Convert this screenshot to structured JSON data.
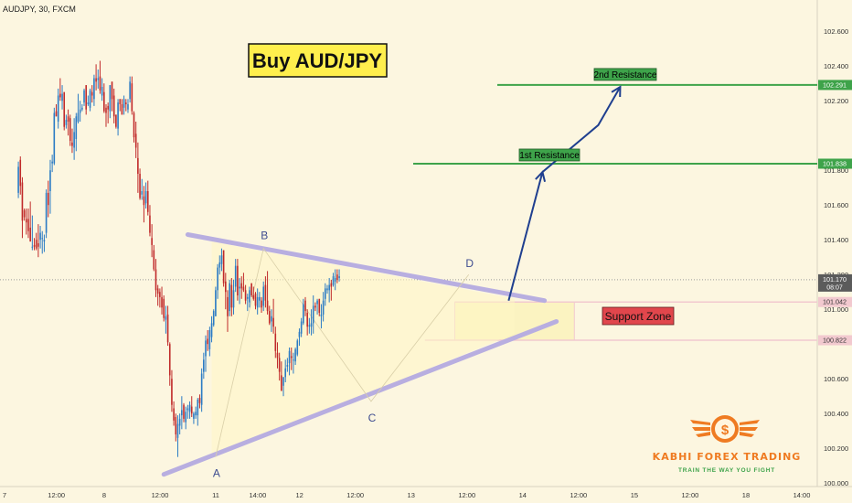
{
  "header": {
    "symbol_line": "AUDJPY, 30, FXCM"
  },
  "chart_data": {
    "type": "candlestick",
    "title": "Buy AUD/JPY",
    "yaxis": {
      "ticks": [
        "102.600",
        "102.400",
        "102.200",
        "101.800",
        "101.600",
        "101.400",
        "101.200",
        "101.000",
        "100.600",
        "100.400",
        "100.200",
        "100.000"
      ],
      "tick_values": [
        102.6,
        102.4,
        102.2,
        101.8,
        101.6,
        101.4,
        101.2,
        101.0,
        100.6,
        100.4,
        100.2,
        100.0
      ],
      "ylim": [
        99.98,
        102.78
      ]
    },
    "xaxis": {
      "ticks": [
        "7",
        "12:00",
        "8",
        "12:00",
        "11",
        "14:00",
        "12",
        "12:00",
        "13",
        "12:00",
        "14",
        "12:00",
        "15",
        "12:00",
        "18",
        "14:00"
      ],
      "tick_index": [
        0,
        26,
        50,
        78,
        106,
        127,
        148,
        176,
        204,
        232,
        260,
        288,
        316,
        344,
        372,
        400
      ],
      "n_slots": 408
    },
    "price_labels": [
      {
        "id": "r2",
        "text": "102.291",
        "value": 102.291,
        "color": "#3ea34a"
      },
      {
        "id": "r1",
        "text": "101.838",
        "value": 101.838,
        "color": "#3ea34a"
      },
      {
        "id": "last",
        "text": "101.170",
        "value": 101.17,
        "color": "#5b5b5b",
        "sub": "08:07"
      },
      {
        "id": "zt",
        "text": "101.042",
        "value": 101.042,
        "color": "#f2c9cf"
      },
      {
        "id": "zb",
        "text": "100.822",
        "value": 100.822,
        "color": "#f2c9cf"
      }
    ],
    "pivots": [
      {
        "label": "A",
        "x": 105,
        "y": 100.15
      },
      {
        "label": "B",
        "x": 129,
        "y": 101.35
      },
      {
        "label": "C",
        "x": 183,
        "y": 100.47
      },
      {
        "label": "D",
        "x": 232,
        "y": 101.2
      }
    ],
    "levels": [
      {
        "name": "2nd Resistance",
        "value": 102.291
      },
      {
        "name": "1st Resistance",
        "value": 101.838
      }
    ],
    "zone": {
      "name": "Support Zone",
      "top": 101.042,
      "bottom": 100.822
    },
    "trendlines": [
      {
        "from": [
          91,
          101.43
        ],
        "to": [
          270,
          101.05
        ]
      },
      {
        "from": [
          79,
          100.05
        ],
        "to": [
          276,
          100.93
        ]
      }
    ],
    "projection": [
      [
        252,
        101.05
      ],
      [
        269,
        101.79
      ],
      [
        297,
        102.06
      ],
      [
        308,
        102.28
      ]
    ],
    "candles": [
      [
        101.67,
        101.85,
        101.64,
        101.82
      ],
      [
        101.86,
        101.88,
        101.66,
        101.71
      ],
      [
        101.73,
        101.76,
        101.41,
        101.51
      ],
      [
        101.57,
        101.58,
        101.51,
        101.53
      ],
      [
        101.52,
        101.58,
        101.43,
        101.5
      ],
      [
        101.52,
        101.58,
        101.41,
        101.45
      ],
      [
        101.47,
        101.62,
        101.39,
        101.39
      ],
      [
        101.36,
        101.54,
        101.34,
        101.36
      ],
      [
        101.37,
        101.41,
        101.34,
        101.36
      ],
      [
        101.4,
        101.44,
        101.34,
        101.35
      ],
      [
        101.38,
        101.49,
        101.3,
        101.36
      ],
      [
        101.4,
        101.48,
        101.35,
        101.44
      ],
      [
        101.41,
        101.45,
        101.32,
        101.41
      ],
      [
        101.39,
        101.43,
        101.33,
        101.4
      ],
      [
        101.44,
        101.69,
        101.41,
        101.67
      ],
      [
        101.67,
        101.74,
        101.53,
        101.6
      ],
      [
        101.68,
        101.86,
        101.55,
        101.8
      ],
      [
        101.84,
        101.89,
        101.79,
        101.85
      ],
      [
        101.84,
        102.16,
        101.83,
        102.13
      ],
      [
        102.14,
        102.18,
        102.11,
        102.11
      ],
      [
        102.08,
        102.27,
        102.04,
        102.23
      ],
      [
        102.24,
        102.33,
        102.2,
        102.22
      ],
      [
        102.2,
        102.29,
        102.15,
        102.24
      ],
      [
        102.25,
        102.25,
        102.03,
        102.05
      ],
      [
        102.06,
        102.12,
        102.04,
        102.09
      ],
      [
        102.11,
        102.15,
        102.0,
        102.08
      ],
      [
        102.1,
        102.12,
        101.94,
        101.97
      ],
      [
        101.96,
        102.04,
        101.9,
        101.94
      ],
      [
        101.93,
        102.1,
        101.86,
        102.02
      ],
      [
        101.98,
        102.13,
        101.91,
        102.11
      ],
      [
        102.08,
        102.24,
        102.07,
        102.13
      ],
      [
        102.13,
        102.2,
        102.08,
        102.15
      ],
      [
        102.15,
        102.18,
        102.14,
        102.16
      ],
      [
        102.19,
        102.27,
        102.17,
        102.26
      ],
      [
        102.29,
        102.29,
        102.12,
        102.15
      ],
      [
        102.18,
        102.23,
        102.17,
        102.19
      ],
      [
        102.16,
        102.27,
        102.14,
        102.26
      ],
      [
        102.25,
        102.29,
        102.19,
        102.23
      ],
      [
        102.21,
        102.35,
        102.17,
        102.33
      ],
      [
        102.33,
        102.41,
        102.26,
        102.31
      ],
      [
        102.32,
        102.38,
        102.27,
        102.33
      ],
      [
        102.34,
        102.43,
        102.24,
        102.26
      ],
      [
        102.23,
        102.33,
        102.2,
        102.28
      ],
      [
        102.25,
        102.3,
        102.13,
        102.14
      ],
      [
        102.16,
        102.18,
        102.05,
        102.13
      ],
      [
        102.17,
        102.19,
        102.07,
        102.15
      ],
      [
        102.14,
        102.29,
        102.1,
        102.29
      ],
      [
        102.31,
        102.31,
        102.14,
        102.21
      ],
      [
        102.23,
        102.27,
        102.07,
        102.11
      ],
      [
        102.12,
        102.12,
        102.04,
        102.05
      ],
      [
        102.04,
        102.21,
        102.0,
        102.19
      ],
      [
        102.21,
        102.21,
        102.14,
        102.18
      ],
      [
        102.18,
        102.21,
        102.12,
        102.12
      ],
      [
        102.16,
        102.23,
        102.12,
        102.21
      ],
      [
        102.19,
        102.21,
        102.14,
        102.18
      ],
      [
        102.15,
        102.21,
        102.13,
        102.18
      ],
      [
        102.21,
        102.34,
        102.19,
        102.31
      ],
      [
        102.3,
        102.34,
        102.12,
        102.14
      ],
      [
        102.13,
        102.14,
        101.96,
        101.99
      ],
      [
        102.01,
        102.08,
        101.87,
        101.93
      ],
      [
        101.87,
        101.96,
        101.67,
        101.78
      ],
      [
        101.78,
        101.81,
        101.63,
        101.64
      ],
      [
        101.66,
        101.75,
        101.63,
        101.68
      ],
      [
        101.65,
        101.71,
        101.5,
        101.6
      ],
      [
        101.61,
        101.73,
        101.58,
        101.68
      ],
      [
        101.68,
        101.74,
        101.54,
        101.56
      ],
      [
        101.54,
        101.6,
        101.42,
        101.44
      ],
      [
        101.41,
        101.49,
        101.3,
        101.37
      ],
      [
        101.34,
        101.37,
        101.22,
        101.23
      ],
      [
        101.23,
        101.29,
        101.07,
        101.11
      ],
      [
        101.12,
        101.14,
        101.02,
        101.09
      ],
      [
        101.1,
        101.12,
        101.01,
        101.07
      ],
      [
        101.07,
        101.13,
        100.97,
        101.01
      ],
      [
        101.06,
        101.08,
        100.93,
        100.95
      ],
      [
        100.94,
        101.02,
        100.86,
        100.96
      ],
      [
        100.97,
        101.02,
        100.79,
        100.81
      ],
      [
        100.8,
        100.81,
        100.56,
        100.62
      ],
      [
        100.6,
        100.65,
        100.41,
        100.45
      ],
      [
        100.43,
        100.47,
        100.33,
        100.36
      ],
      [
        100.38,
        100.4,
        100.24,
        100.28
      ],
      [
        100.26,
        100.39,
        100.15,
        100.34
      ],
      [
        100.33,
        100.4,
        100.28,
        100.37
      ],
      [
        100.39,
        100.5,
        100.31,
        100.42
      ],
      [
        100.45,
        100.46,
        100.35,
        100.37
      ],
      [
        100.35,
        100.44,
        100.31,
        100.41
      ],
      [
        100.42,
        100.45,
        100.37,
        100.43
      ],
      [
        100.41,
        100.47,
        100.37,
        100.45
      ],
      [
        100.44,
        100.5,
        100.38,
        100.4
      ],
      [
        100.37,
        100.41,
        100.34,
        100.4
      ],
      [
        100.39,
        100.44,
        100.37,
        100.41
      ],
      [
        100.39,
        100.49,
        100.33,
        100.48
      ],
      [
        100.49,
        100.51,
        100.43,
        100.46
      ],
      [
        100.45,
        100.66,
        100.41,
        100.63
      ],
      [
        100.64,
        100.75,
        100.6,
        100.71
      ],
      [
        100.73,
        100.85,
        100.64,
        100.82
      ],
      [
        100.83,
        100.88,
        100.76,
        100.8
      ],
      [
        100.77,
        100.9,
        100.73,
        100.88
      ],
      [
        100.84,
        100.96,
        100.81,
        100.92
      ],
      [
        100.91,
        101.0,
        100.9,
        100.99
      ],
      [
        100.96,
        101.13,
        100.96,
        101.11
      ],
      [
        101.11,
        101.26,
        101.06,
        101.24
      ],
      [
        101.24,
        101.31,
        101.2,
        101.27
      ],
      [
        101.26,
        101.35,
        101.22,
        101.31
      ],
      [
        101.34,
        101.34,
        101.13,
        101.15
      ],
      [
        101.16,
        101.21,
        101.0,
        101.1
      ],
      [
        101.07,
        101.11,
        100.87,
        100.96
      ],
      [
        100.99,
        101.17,
        100.96,
        101.15
      ],
      [
        101.14,
        101.18,
        100.96,
        101.01
      ],
      [
        101.01,
        101.17,
        100.97,
        101.11
      ],
      [
        101.13,
        101.29,
        101.1,
        101.25
      ],
      [
        101.25,
        101.29,
        101.05,
        101.08
      ],
      [
        101.12,
        101.18,
        101.03,
        101.13
      ],
      [
        101.15,
        101.19,
        101.06,
        101.12
      ],
      [
        101.13,
        101.21,
        101.1,
        101.11
      ],
      [
        101.11,
        101.14,
        101.03,
        101.05
      ],
      [
        101.06,
        101.09,
        100.99,
        101.07
      ],
      [
        101.04,
        101.13,
        101.01,
        101.11
      ],
      [
        101.15,
        101.15,
        101.07,
        101.08
      ],
      [
        101.08,
        101.13,
        101.05,
        101.06
      ],
      [
        101.09,
        101.1,
        101.0,
        101.02
      ],
      [
        101.01,
        101.12,
        100.97,
        101.07
      ],
      [
        101.05,
        101.1,
        101.01,
        101.07
      ],
      [
        101.05,
        101.07,
        100.98,
        101.01
      ],
      [
        101.02,
        101.16,
        100.99,
        101.13
      ],
      [
        101.14,
        101.19,
        101.01,
        101.05
      ],
      [
        101.05,
        101.22,
        100.97,
        100.99
      ],
      [
        100.99,
        101.02,
        100.91,
        100.92
      ],
      [
        100.93,
        101.0,
        100.87,
        100.96
      ],
      [
        100.95,
        101.06,
        100.86,
        100.9
      ],
      [
        100.86,
        100.9,
        100.72,
        100.76
      ],
      [
        100.75,
        100.81,
        100.66,
        100.72
      ],
      [
        100.72,
        100.75,
        100.59,
        100.64
      ],
      [
        100.62,
        100.7,
        100.53,
        100.53
      ],
      [
        100.56,
        100.61,
        100.5,
        100.61
      ],
      [
        100.61,
        100.71,
        100.58,
        100.66
      ],
      [
        100.67,
        100.72,
        100.64,
        100.68
      ],
      [
        100.69,
        100.78,
        100.62,
        100.76
      ],
      [
        100.73,
        100.78,
        100.65,
        100.72
      ],
      [
        100.71,
        100.75,
        100.63,
        100.71
      ],
      [
        100.7,
        100.78,
        100.68,
        100.77
      ],
      [
        100.74,
        100.83,
        100.73,
        100.82
      ],
      [
        100.84,
        100.89,
        100.79,
        100.87
      ],
      [
        100.86,
        100.95,
        100.84,
        100.93
      ],
      [
        100.92,
        101.06,
        100.91,
        101.03
      ],
      [
        101.05,
        101.07,
        100.96,
        100.99
      ],
      [
        100.98,
        101.0,
        100.85,
        100.9
      ],
      [
        100.9,
        100.95,
        100.86,
        100.91
      ],
      [
        100.9,
        101.0,
        100.85,
        100.92
      ],
      [
        100.92,
        101.08,
        100.86,
        101.02
      ],
      [
        101.02,
        101.04,
        100.99,
        101.01
      ],
      [
        101.03,
        101.06,
        100.97,
        101.05
      ],
      [
        101.06,
        101.06,
        100.96,
        100.98
      ],
      [
        100.96,
        101.03,
        100.89,
        100.97
      ],
      [
        100.97,
        101.1,
        100.93,
        101.05
      ],
      [
        101.06,
        101.15,
        101.02,
        101.12
      ],
      [
        101.11,
        101.14,
        101.09,
        101.12
      ],
      [
        101.11,
        101.18,
        101.04,
        101.14
      ],
      [
        101.15,
        101.17,
        101.05,
        101.13
      ],
      [
        101.14,
        101.21,
        101.13,
        101.19
      ],
      [
        101.16,
        101.23,
        101.11,
        101.18
      ],
      [
        101.2,
        101.23,
        101.15,
        101.17
      ],
      [
        101.18,
        101.23,
        101.16,
        101.19
      ]
    ]
  },
  "annotations": {
    "title_label": "Buy AUD/JPY",
    "r1_label": "1st Resistance",
    "r2_label": "2nd Resistance",
    "zone_label": "Support Zone",
    "point_labels": [
      "A",
      "B",
      "C",
      "D"
    ]
  },
  "logo": {
    "name": "KABHI FOREX TRADING",
    "tagline": "TRAIN THE WAY YOU FIGHT",
    "symbol": "$"
  },
  "colors": {
    "bg": "#fcf6e0",
    "bull": "#2b7bc4",
    "bear": "#c02a2a",
    "resistance": "#3ea34a",
    "trendline": "#b8aee0",
    "zone_fill": "#fbf2b7",
    "zone_line": "#f2c9cf",
    "arrow": "#1f3f8f",
    "title_bg": "#ffef4d",
    "support_bg": "#e1464c",
    "logo_orange": "#ef7b22"
  }
}
